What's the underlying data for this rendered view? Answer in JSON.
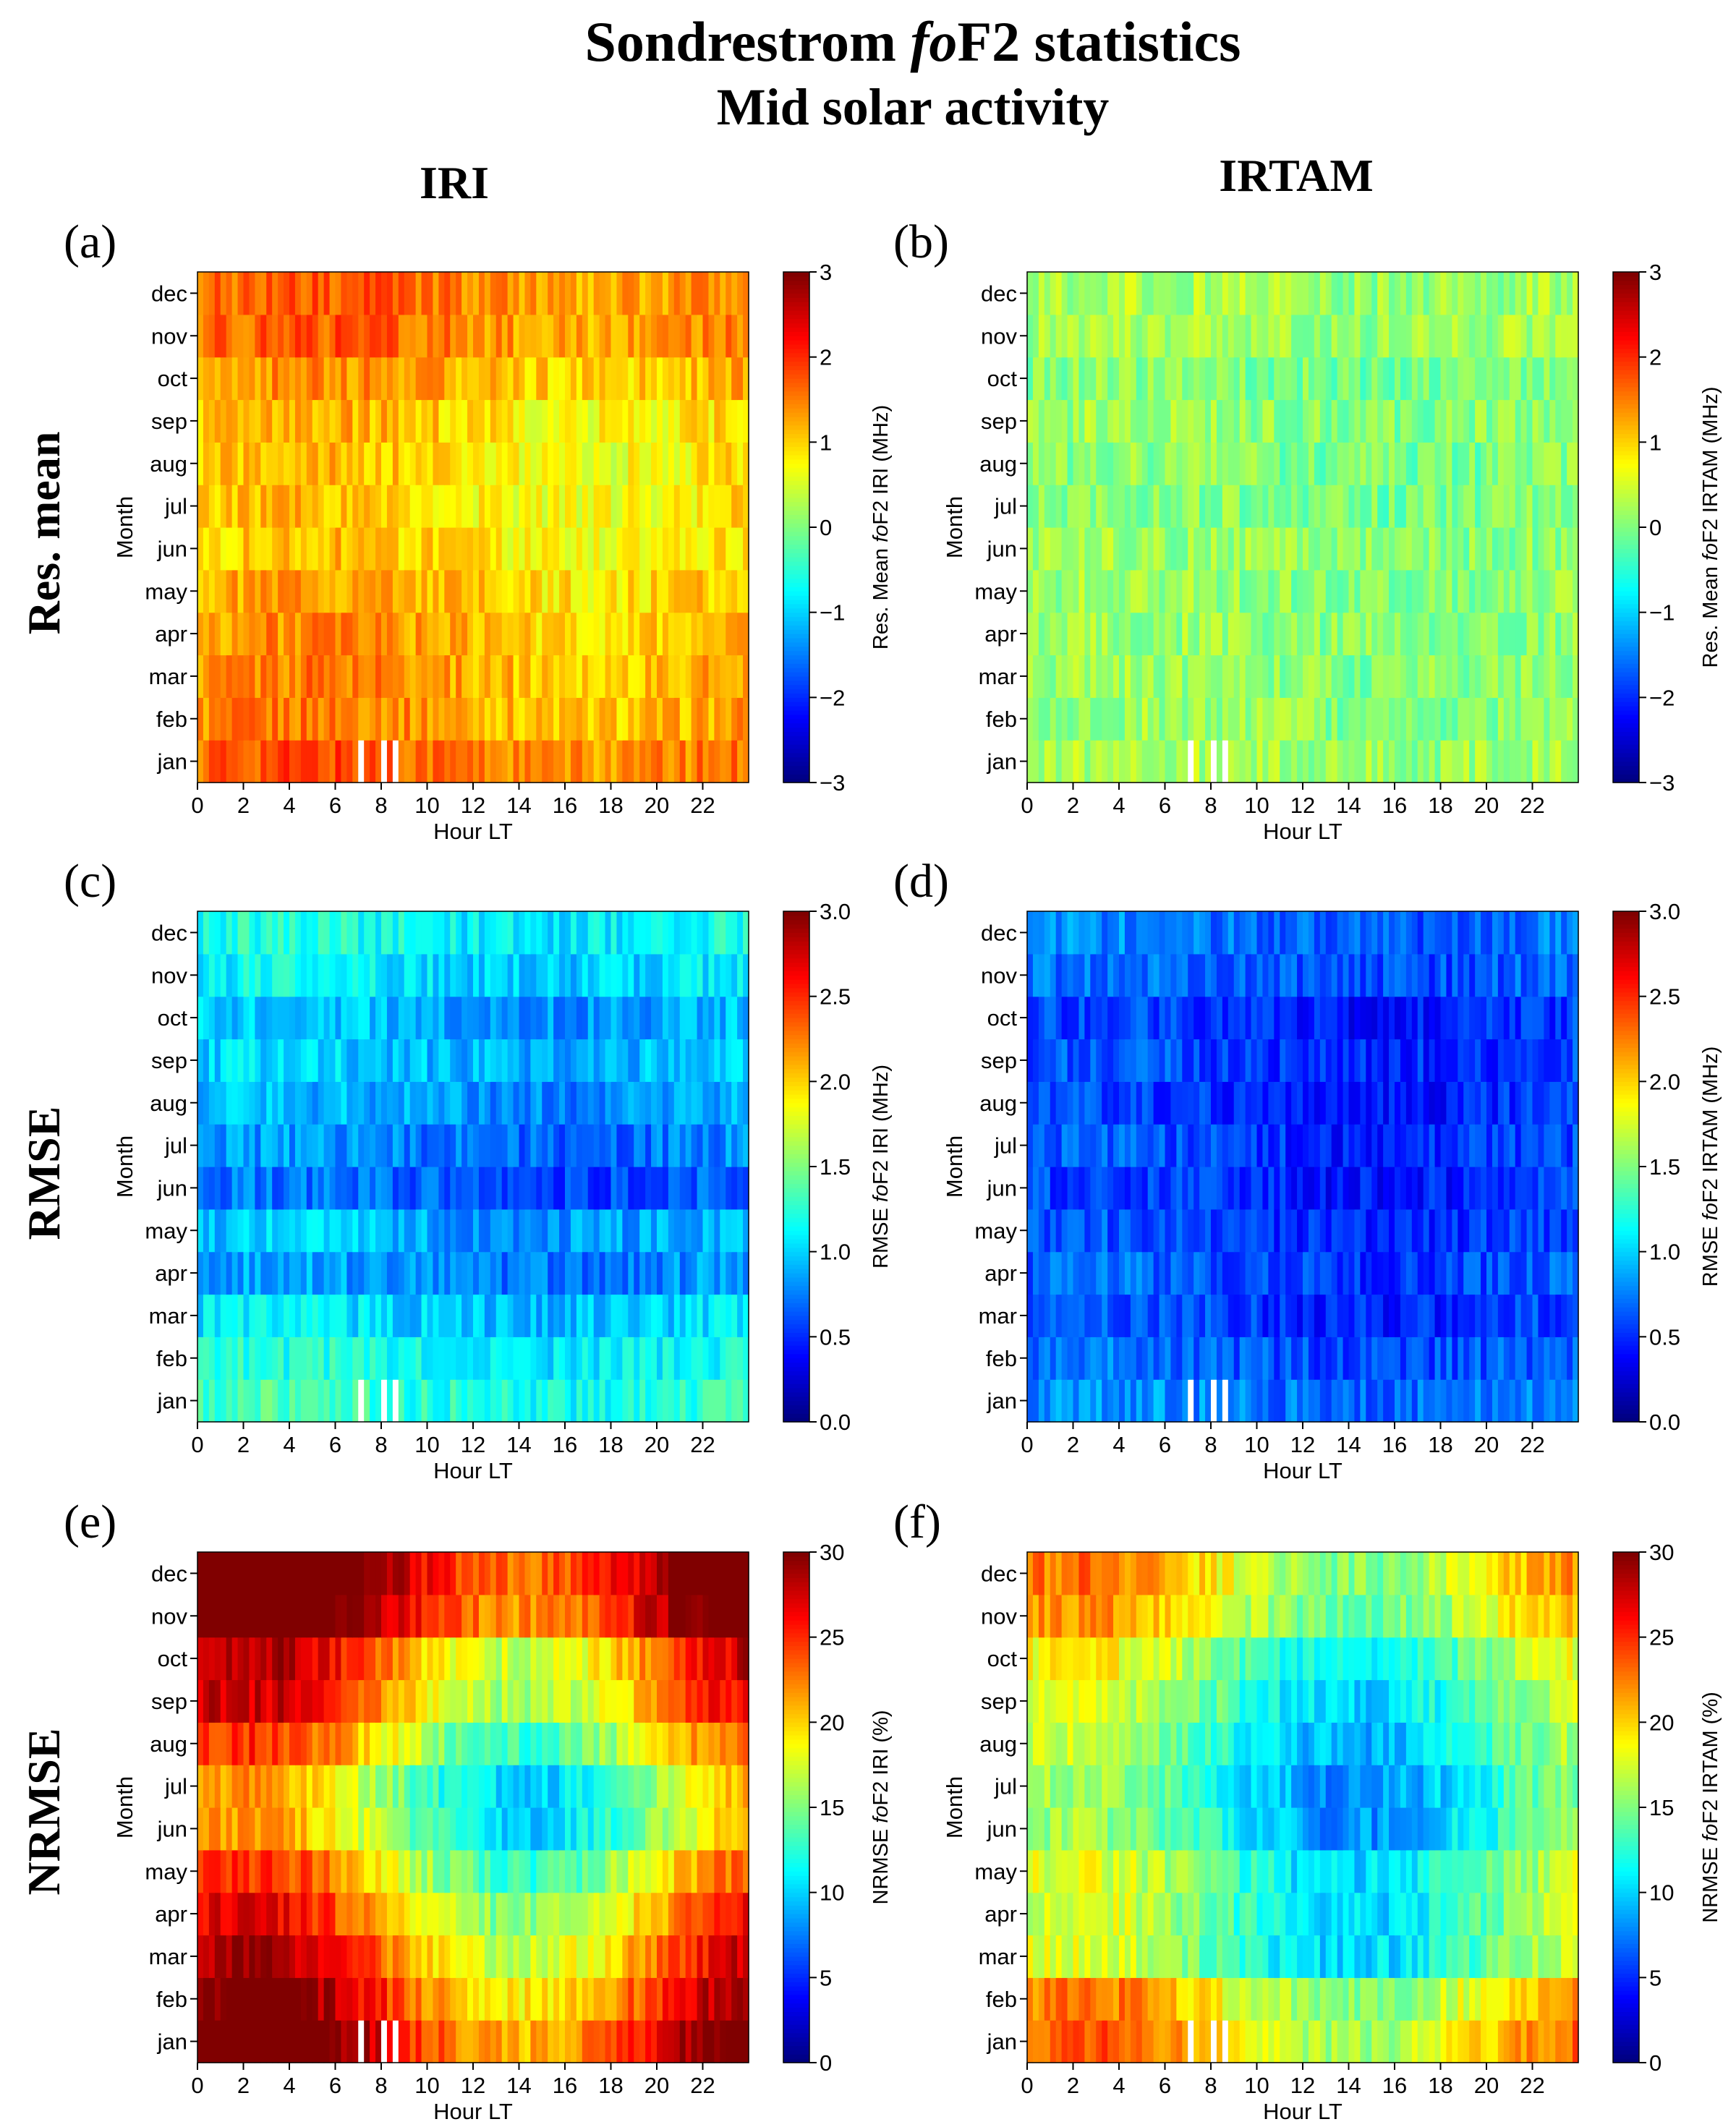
{
  "figure": {
    "title_pre": "Sondrestrom ",
    "title_italic": "fo",
    "title_post": "F2 statistics",
    "subtitle": "Mid solar activity",
    "col_iri": "IRI",
    "col_irtam": "IRTAM",
    "row_res": "Res. mean",
    "row_rmse": "RMSE",
    "row_nrmse": "NRMSE"
  },
  "chart_data": [
    {
      "id": "a",
      "panel_label": "(a)",
      "type": "heatmap",
      "model": "IRI",
      "metric": "resmean",
      "xlabel": "Hour LT",
      "ylabel": "Month",
      "x_ticks": [
        "0",
        "2",
        "4",
        "6",
        "8",
        "10",
        "12",
        "14",
        "16",
        "18",
        "20",
        "22"
      ],
      "months": [
        "jan",
        "feb",
        "mar",
        "apr",
        "may",
        "jun",
        "jul",
        "aug",
        "sep",
        "oct",
        "nov",
        "dec"
      ],
      "cbar_label_pre": "Res. Mean ",
      "cbar_label_italic": "fo",
      "cbar_label_post": "F2 IRI (MHz)",
      "cbar_ticks": [
        "−3",
        "−2",
        "−1",
        "0",
        "1",
        "2",
        "3"
      ],
      "vmin": -3,
      "vmax": 3,
      "monthly_mean": [
        1.6,
        1.3,
        1.3,
        1.2,
        1.1,
        0.9,
        0.9,
        0.9,
        1.0,
        1.2,
        1.5,
        1.5
      ],
      "missing_hours": [
        7.0,
        8.0,
        8.5
      ]
    },
    {
      "id": "b",
      "panel_label": "(b)",
      "type": "heatmap",
      "model": "IRTAM",
      "metric": "resmean",
      "xlabel": "Hour LT",
      "ylabel": "Month",
      "x_ticks": [
        "0",
        "2",
        "4",
        "6",
        "8",
        "10",
        "12",
        "14",
        "16",
        "18",
        "20",
        "22"
      ],
      "months": [
        "jan",
        "feb",
        "mar",
        "apr",
        "may",
        "jun",
        "jul",
        "aug",
        "sep",
        "oct",
        "nov",
        "dec"
      ],
      "cbar_label_pre": "Res. Mean ",
      "cbar_label_italic": "fo",
      "cbar_label_post": "F2 IRTAM (MHz)",
      "cbar_ticks": [
        "−3",
        "−2",
        "−1",
        "0",
        "1",
        "2",
        "3"
      ],
      "vmin": -3,
      "vmax": 3,
      "monthly_mean": [
        0.2,
        0.1,
        0.1,
        0.1,
        0.1,
        0.1,
        0.0,
        0.0,
        0.1,
        0.0,
        0.2,
        0.2
      ],
      "missing_hours": [
        7.0,
        8.0,
        8.5
      ]
    },
    {
      "id": "c",
      "panel_label": "(c)",
      "type": "heatmap",
      "model": "IRI",
      "metric": "rmse",
      "xlabel": "Hour LT",
      "ylabel": "Month",
      "x_ticks": [
        "0",
        "2",
        "4",
        "6",
        "8",
        "10",
        "12",
        "14",
        "16",
        "18",
        "20",
        "22"
      ],
      "months": [
        "jan",
        "feb",
        "mar",
        "apr",
        "may",
        "jun",
        "jul",
        "aug",
        "sep",
        "oct",
        "nov",
        "dec"
      ],
      "cbar_label_pre": "RMSE ",
      "cbar_label_italic": "fo",
      "cbar_label_post": "F2 IRI (MHz)",
      "cbar_ticks": [
        "0.0",
        "0.5",
        "1.0",
        "1.5",
        "2.0",
        "2.5",
        "3.0"
      ],
      "vmin": 0,
      "vmax": 3,
      "monthly_mean": [
        1.25,
        1.15,
        1.0,
        0.8,
        0.9,
        0.65,
        0.75,
        0.85,
        0.95,
        0.9,
        1.05,
        1.15
      ],
      "missing_hours": [
        7.0,
        8.0,
        8.5
      ]
    },
    {
      "id": "d",
      "panel_label": "(d)",
      "type": "heatmap",
      "model": "IRTAM",
      "metric": "rmse",
      "xlabel": "Hour LT",
      "ylabel": "Month",
      "x_ticks": [
        "0",
        "2",
        "4",
        "6",
        "8",
        "10",
        "12",
        "14",
        "16",
        "18",
        "20",
        "22"
      ],
      "months": [
        "jan",
        "feb",
        "mar",
        "apr",
        "may",
        "jun",
        "jul",
        "aug",
        "sep",
        "oct",
        "nov",
        "dec"
      ],
      "cbar_label_pre": "RMSE ",
      "cbar_label_italic": "fo",
      "cbar_label_post": "F2 IRTAM (MHz)",
      "cbar_ticks": [
        "0.0",
        "0.5",
        "1.0",
        "1.5",
        "2.0",
        "2.5",
        "3.0"
      ],
      "vmin": 0,
      "vmax": 3,
      "monthly_mean": [
        0.75,
        0.65,
        0.55,
        0.6,
        0.55,
        0.5,
        0.55,
        0.5,
        0.55,
        0.5,
        0.65,
        0.7
      ],
      "missing_hours": [
        7.0,
        8.0,
        8.5
      ]
    },
    {
      "id": "e",
      "panel_label": "(e)",
      "type": "heatmap",
      "model": "IRI",
      "metric": "nrmse",
      "xlabel": "Hour LT",
      "ylabel": "Month",
      "x_ticks": [
        "0",
        "2",
        "4",
        "6",
        "8",
        "10",
        "12",
        "14",
        "16",
        "18",
        "20",
        "22"
      ],
      "months": [
        "jan",
        "feb",
        "mar",
        "apr",
        "may",
        "jun",
        "jul",
        "aug",
        "sep",
        "oct",
        "nov",
        "dec"
      ],
      "cbar_label_pre": "NRMSE ",
      "cbar_label_italic": "fo",
      "cbar_label_post": "F2 IRI (%)",
      "cbar_ticks": [
        "0",
        "5",
        "10",
        "15",
        "20",
        "25",
        "30"
      ],
      "vmin": 0,
      "vmax": 30,
      "monthly_mean": [
        27,
        25,
        23,
        21,
        19,
        16,
        16,
        19,
        22,
        23,
        28,
        29
      ],
      "missing_hours": [
        7.0,
        8.0,
        8.5
      ]
    },
    {
      "id": "f",
      "panel_label": "(f)",
      "type": "heatmap",
      "model": "IRTAM",
      "metric": "nrmse",
      "xlabel": "Hour LT",
      "ylabel": "Month",
      "x_ticks": [
        "0",
        "2",
        "4",
        "6",
        "8",
        "10",
        "12",
        "14",
        "16",
        "18",
        "20",
        "22"
      ],
      "months": [
        "jan",
        "feb",
        "mar",
        "apr",
        "may",
        "jun",
        "jul",
        "aug",
        "sep",
        "oct",
        "nov",
        "dec"
      ],
      "cbar_label_pre": "NRMSE ",
      "cbar_label_italic": "fo",
      "cbar_label_post": "F2 IRTAM (%)",
      "cbar_ticks": [
        "0",
        "5",
        "10",
        "15",
        "20",
        "25",
        "30"
      ],
      "vmin": 0,
      "vmax": 30,
      "monthly_mean": [
        20,
        19,
        14,
        14,
        14,
        12,
        12,
        13,
        14,
        15,
        18,
        19
      ],
      "missing_hours": [
        7.0,
        8.0,
        8.5
      ]
    }
  ]
}
